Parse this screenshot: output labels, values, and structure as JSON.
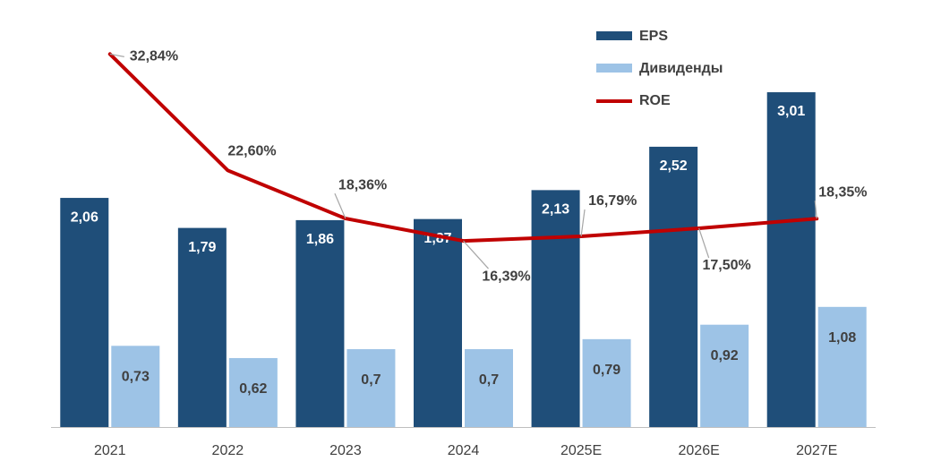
{
  "chart_data": {
    "type": "bar",
    "categories": [
      "2021",
      "2022",
      "2023",
      "2024",
      "2025E",
      "2026E",
      "2027E"
    ],
    "series": [
      {
        "name": "EPS",
        "type": "bar",
        "axis": "left",
        "color": "#1F4E79",
        "values": [
          2.06,
          1.79,
          1.86,
          1.87,
          2.13,
          2.52,
          3.01
        ],
        "labels": [
          "2,06",
          "1,79",
          "1,86",
          "1,87",
          "2,13",
          "2,52",
          "3,01"
        ]
      },
      {
        "name": "Дивиденды",
        "type": "bar",
        "axis": "left",
        "color": "#9DC3E6",
        "values": [
          0.73,
          0.62,
          0.7,
          0.7,
          0.79,
          0.92,
          1.08
        ],
        "labels": [
          "0,73",
          "0,62",
          "0,7",
          "0,7",
          "0,79",
          "0,92",
          "1,08"
        ]
      },
      {
        "name": "ROE",
        "type": "line",
        "axis": "right",
        "unit": "%",
        "color": "#C00000",
        "values": [
          32.84,
          22.6,
          18.36,
          16.39,
          16.79,
          17.5,
          18.35
        ],
        "labels": [
          "32,84%",
          "22,60%",
          "18,36%",
          "16,39%",
          "16,79%",
          "17,50%",
          "18,35%"
        ]
      }
    ],
    "ylim_left": [
      0,
      3.3
    ],
    "ylim_right": [
      0,
      35
    ],
    "grid": false,
    "legend": "top-right",
    "title": "",
    "xlabel": "",
    "ylabel": ""
  }
}
